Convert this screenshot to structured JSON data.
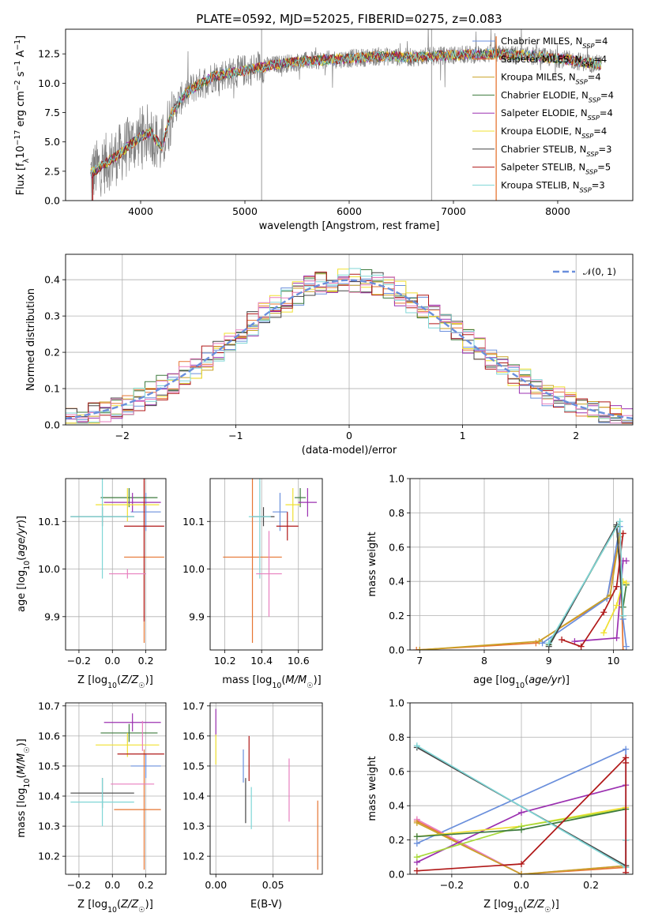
{
  "title": "PLATE=0592, MJD=52025, FIBERID=0275, z=0.083",
  "colors": {
    "Chabrier MILES": "#6a8fdc",
    "Salpeter MILES": "#e67532",
    "Kroupa MILES": "#c9a227",
    "Chabrier ELODIE": "#3d7a3d",
    "Salpeter ELODIE": "#9b30b0",
    "Kroupa ELODIE": "#f0e030",
    "Chabrier STELIB": "#454545",
    "Salpeter STELIB": "#b01818",
    "Kroupa STELIB": "#7fd6d6",
    "pink": "#e87fbf",
    "lime": "#a8d93a",
    "spectrum": "#808080",
    "normal": "#6a8fdc"
  },
  "chart_data": [
    {
      "id": "spectrum",
      "type": "line",
      "xlabel": "wavelength [Angstrom, rest frame]",
      "ylabel": "Flux [f_λ 10^-17 erg cm^-2 s^-1 A^-1]",
      "xlim": [
        3280,
        8720
      ],
      "ylim": [
        0,
        14.6
      ],
      "xticks": [
        4000,
        5000,
        6000,
        7000,
        8000
      ],
      "yticks": [
        0.0,
        2.5,
        5.0,
        7.5,
        10.0,
        12.5
      ],
      "grid": false,
      "legend_position": "top-right",
      "continuum": {
        "x": [
          3500,
          3800,
          4000,
          4100,
          4200,
          4300,
          4400,
          4500,
          4700,
          5000,
          5300,
          5600,
          6000,
          6300,
          6600,
          7000,
          7400,
          7800,
          8100,
          8400
        ],
        "y": [
          2.2,
          4.0,
          5.5,
          5.8,
          4.5,
          7.5,
          8.8,
          9.6,
          10.6,
          11.1,
          11.6,
          11.9,
          12.1,
          12.3,
          12.2,
          12.4,
          12.5,
          12.3,
          12.0,
          11.6
        ]
      },
      "series": [
        {
          "name": "Chabrier MILES",
          "nssp": "4"
        },
        {
          "name": "Salpeter MILES",
          "nssp": "4"
        },
        {
          "name": "Kroupa MILES",
          "nssp": "4"
        },
        {
          "name": "Chabrier ELODIE",
          "nssp": "4"
        },
        {
          "name": "Salpeter ELODIE",
          "nssp": "4"
        },
        {
          "name": "Kroupa ELODIE",
          "nssp": "4"
        },
        {
          "name": "Chabrier STELIB",
          "nssp": "3"
        },
        {
          "name": "Salpeter STELIB",
          "nssp": "5"
        },
        {
          "name": "Kroupa STELIB",
          "nssp": "3"
        }
      ]
    },
    {
      "id": "residuals",
      "type": "line",
      "xlabel": "(data-model)/error",
      "ylabel": "Normed distribution",
      "xlim": [
        -2.5,
        2.5
      ],
      "ylim": [
        0,
        0.47
      ],
      "xticks": [
        -2,
        -1,
        0,
        1,
        2
      ],
      "xticklabels": [
        "−2",
        "−1",
        "0",
        "1",
        "2"
      ],
      "yticks": [
        0.0,
        0.1,
        0.2,
        0.3,
        0.4
      ],
      "grid": true,
      "legend_position": "top-right",
      "legend": "𝒩(0, 1)",
      "hist_bins": 50,
      "hist_shape": "gaussian, peak ≈ 0.40"
    },
    {
      "id": "age_vs_Z",
      "type": "scatter",
      "xlabel": "Z [log10(Z/Z☉)]",
      "ylabel": "age  [log10(age/yr)]",
      "xlim": [
        -0.28,
        0.32
      ],
      "ylim": [
        9.83,
        10.19
      ],
      "xticks": [
        -0.2,
        0.0,
        0.2
      ],
      "xticklabels": [
        "−0.2",
        "0.0",
        "0.2"
      ],
      "yticks": [
        9.9,
        10.0,
        10.1
      ],
      "grid": true,
      "points": [
        {
          "c": "Chabrier MILES",
          "x": 0.2,
          "y": 10.12,
          "ex": 0.09,
          "ey": 0.04
        },
        {
          "c": "Salpeter MILES",
          "x": 0.19,
          "y": 10.025,
          "ex": 0.12,
          "ey": 0.18
        },
        {
          "c": "Chabrier ELODIE",
          "x": 0.1,
          "y": 10.15,
          "ex": 0.17,
          "ey": 0.02
        },
        {
          "c": "Salpeter ELODIE",
          "x": 0.12,
          "y": 10.14,
          "ex": 0.17,
          "ey": 0.02
        },
        {
          "c": "Kroupa ELODIE",
          "x": 0.09,
          "y": 10.135,
          "ex": 0.19,
          "ey": 0.035
        },
        {
          "c": "Chabrier STELIB",
          "x": -0.06,
          "y": 10.11,
          "ex": 0.19,
          "ey": 0.02
        },
        {
          "c": "Salpeter STELIB",
          "x": 0.19,
          "y": 10.09,
          "ex": 0.12,
          "ey": 0.2
        },
        {
          "c": "Kroupa STELIB",
          "x": -0.06,
          "y": 10.11,
          "ex": 0.19,
          "ey": 0.13
        },
        {
          "c": "pink",
          "x": 0.09,
          "y": 9.99,
          "ex": 0.11,
          "ey": 0.01
        }
      ]
    },
    {
      "id": "age_vs_mass",
      "type": "scatter",
      "xlabel": "mass [log10(M/M☉)]",
      "ylabel": "",
      "xlim": [
        10.12,
        10.73
      ],
      "ylim": [
        9.83,
        10.19
      ],
      "xticks": [
        10.2,
        10.4,
        10.6
      ],
      "yticks": [
        9.9,
        10.0,
        10.1
      ],
      "grid": true,
      "points": [
        {
          "c": "Chabrier MILES",
          "x": 10.5,
          "y": 10.12,
          "ex": 0.04,
          "ey": 0.04
        },
        {
          "c": "Salpeter MILES",
          "x": 10.35,
          "y": 10.025,
          "ex": 0.16,
          "ey": 0.18
        },
        {
          "c": "Chabrier ELODIE",
          "x": 10.61,
          "y": 10.15,
          "ex": 0.03,
          "ey": 0.02
        },
        {
          "c": "Salpeter ELODIE",
          "x": 10.65,
          "y": 10.14,
          "ex": 0.05,
          "ey": 0.03
        },
        {
          "c": "Kroupa ELODIE",
          "x": 10.57,
          "y": 10.135,
          "ex": 0.04,
          "ey": 0.035
        },
        {
          "c": "Chabrier STELIB",
          "x": 10.41,
          "y": 10.11,
          "ex": 0.06,
          "ey": 0.02
        },
        {
          "c": "Salpeter STELIB",
          "x": 10.54,
          "y": 10.09,
          "ex": 0.06,
          "ey": 0.03
        },
        {
          "c": "Kroupa STELIB",
          "x": 10.39,
          "y": 10.11,
          "ex": 0.06,
          "ey": 0.13
        },
        {
          "c": "pink",
          "x": 10.44,
          "y": 9.99,
          "ex": 0.07,
          "ey": 0.09
        }
      ]
    },
    {
      "id": "mass_weight_vs_age",
      "type": "line",
      "xlabel": "age  [log10(age/yr)]",
      "ylabel": "mass weight",
      "xlim": [
        6.85,
        10.3
      ],
      "ylim": [
        0,
        1.0
      ],
      "xticks": [
        7,
        8,
        9,
        10
      ],
      "yticks": [
        0.0,
        0.2,
        0.4,
        0.6,
        0.8,
        1.0
      ],
      "grid": true,
      "series": [
        {
          "c": "Salpeter MILES",
          "x": [
            6.95,
            8.8,
            9.9,
            10.1,
            10.15
          ],
          "y": [
            0.0,
            0.04,
            0.3,
            0.66,
            0.0
          ]
        },
        {
          "c": "Chabrier MILES",
          "x": [
            8.9,
            9.9,
            10.1,
            10.15,
            10.2
          ],
          "y": [
            0.04,
            0.3,
            0.72,
            0.18,
            0.02
          ]
        },
        {
          "c": "Kroupa MILES",
          "x": [
            7.0,
            8.85,
            9.95,
            10.1
          ],
          "y": [
            0.0,
            0.05,
            0.32,
            0.68
          ]
        },
        {
          "c": "Chabrier ELODIE",
          "x": [
            9.0,
            10.05,
            10.15,
            10.2
          ],
          "y": [
            0.03,
            0.72,
            0.25,
            0.38
          ]
        },
        {
          "c": "Salpeter ELODIE",
          "x": [
            9.4,
            10.05,
            10.15,
            10.2
          ],
          "y": [
            0.05,
            0.07,
            0.52,
            0.52
          ]
        },
        {
          "c": "Kroupa ELODIE",
          "x": [
            9.85,
            10.05,
            10.15,
            10.2
          ],
          "y": [
            0.1,
            0.26,
            0.4,
            0.39
          ]
        },
        {
          "c": "Chabrier STELIB",
          "x": [
            9.0,
            10.05,
            10.15
          ],
          "y": [
            0.02,
            0.73,
            0.2
          ]
        },
        {
          "c": "Salpeter STELIB",
          "x": [
            9.2,
            9.5,
            9.85,
            10.05,
            10.15
          ],
          "y": [
            0.06,
            0.02,
            0.22,
            0.37,
            0.68
          ]
        },
        {
          "c": "Kroupa STELIB",
          "x": [
            9.0,
            10.1,
            10.15
          ],
          "y": [
            0.04,
            0.75,
            0.2
          ]
        }
      ]
    },
    {
      "id": "mass_vs_Z",
      "type": "scatter",
      "xlabel": "Z [log10(Z/Z☉)]",
      "ylabel": "mass [log10(M/M☉)]",
      "xlim": [
        -0.28,
        0.32
      ],
      "ylim": [
        10.14,
        10.71
      ],
      "xticks": [
        -0.2,
        0.0,
        0.2
      ],
      "xticklabels": [
        "−0.2",
        "0.0",
        "0.2"
      ],
      "yticks": [
        10.2,
        10.3,
        10.4,
        10.5,
        10.6,
        10.7
      ],
      "grid": true,
      "points": [
        {
          "c": "Chabrier MILES",
          "x": 0.2,
          "y": 10.5,
          "ex": 0.09,
          "ey": 0.04
        },
        {
          "c": "Salpeter MILES",
          "x": 0.15,
          "y": 10.355,
          "ex": 0.14,
          "ey": 0.0
        },
        {
          "c": "Salpeter MILES",
          "x": 0.19,
          "y": 10.355,
          "ex": 0.0,
          "ey": 0.2
        },
        {
          "c": "Chabrier ELODIE",
          "x": 0.1,
          "y": 10.61,
          "ex": 0.17,
          "ey": 0.03
        },
        {
          "c": "Salpeter ELODIE",
          "x": 0.12,
          "y": 10.645,
          "ex": 0.17,
          "ey": 0.03
        },
        {
          "c": "Kroupa ELODIE",
          "x": 0.09,
          "y": 10.57,
          "ex": 0.19,
          "ey": 0.04
        },
        {
          "c": "Chabrier STELIB",
          "x": -0.06,
          "y": 10.41,
          "ex": 0.19,
          "ey": 0.05
        },
        {
          "c": "Salpeter STELIB",
          "x": 0.17,
          "y": 10.54,
          "ex": 0.14,
          "ey": 0.0
        },
        {
          "c": "Kroupa STELIB",
          "x": -0.06,
          "y": 10.38,
          "ex": 0.19,
          "ey": 0.08
        },
        {
          "c": "pink",
          "x": 0.12,
          "y": 10.44,
          "ex": 0.13,
          "ey": 0.0
        },
        {
          "c": "pink",
          "x": 0.18,
          "y": 10.6,
          "ex": 0.0,
          "ey": 0.05
        }
      ]
    },
    {
      "id": "mass_vs_EBV",
      "type": "scatter",
      "xlabel": "E(B-V)",
      "ylabel": "",
      "xlim": [
        -0.005,
        0.093
      ],
      "ylim": [
        10.14,
        10.71
      ],
      "xticks": [
        0.0,
        0.05
      ],
      "xticklabels": [
        "0.00",
        "0.05"
      ],
      "yticks": [
        10.2,
        10.3,
        10.4,
        10.5,
        10.6,
        10.7
      ],
      "grid": true,
      "points": [
        {
          "c": "Salpeter ELODIE",
          "x": 0.0,
          "y": 10.645,
          "ex": 0,
          "ey": 0.045
        },
        {
          "c": "Kroupa ELODIE",
          "x": 0.0,
          "y": 10.555,
          "ex": 0,
          "ey": 0.05
        },
        {
          "c": "Chabrier MILES",
          "x": 0.024,
          "y": 10.5,
          "ex": 0,
          "ey": 0.055
        },
        {
          "c": "Chabrier STELIB",
          "x": 0.026,
          "y": 10.385,
          "ex": 0,
          "ey": 0.075
        },
        {
          "c": "Salpeter STELIB",
          "x": 0.029,
          "y": 10.525,
          "ex": 0,
          "ey": 0.075
        },
        {
          "c": "Kroupa STELIB",
          "x": 0.031,
          "y": 10.36,
          "ex": 0,
          "ey": 0.07
        },
        {
          "c": "pink",
          "x": 0.064,
          "y": 10.42,
          "ex": 0,
          "ey": 0.105
        },
        {
          "c": "Salpeter MILES",
          "x": 0.089,
          "y": 10.27,
          "ex": 0,
          "ey": 0.115
        }
      ]
    },
    {
      "id": "mass_weight_vs_Z",
      "type": "line",
      "xlabel": "Z [log10(Z/Z☉)]",
      "ylabel": "mass weight",
      "xlim": [
        -0.32,
        0.32
      ],
      "ylim": [
        0,
        1.0
      ],
      "xticks": [
        -0.2,
        0.0,
        0.2
      ],
      "xticklabels": [
        "−0.2",
        "0.0",
        "0.2"
      ],
      "yticks": [
        0.0,
        0.2,
        0.4,
        0.6,
        0.8,
        1.0
      ],
      "grid": true,
      "series": [
        {
          "c": "Chabrier MILES",
          "x": [
            -0.3,
            0.3,
            0.3,
            0.3
          ],
          "y": [
            0.18,
            0.73,
            0.2,
            0.04
          ]
        },
        {
          "c": "Salpeter MILES",
          "x": [
            -0.3,
            0.0,
            0.3
          ],
          "y": [
            0.31,
            0.0,
            0.04
          ]
        },
        {
          "c": "pink",
          "x": [
            -0.3,
            0.0,
            0.3
          ],
          "y": [
            0.32,
            0.0,
            0.05
          ]
        },
        {
          "c": "Kroupa MILES",
          "x": [
            -0.3,
            0.0,
            0.3
          ],
          "y": [
            0.3,
            0.0,
            0.05
          ]
        },
        {
          "c": "Salpeter ELODIE",
          "x": [
            -0.3,
            0.0,
            0.3
          ],
          "y": [
            0.07,
            0.36,
            0.52
          ]
        },
        {
          "c": "Kroupa ELODIE",
          "x": [
            -0.3,
            0.0,
            0.3
          ],
          "y": [
            0.22,
            0.28,
            0.39
          ]
        },
        {
          "c": "lime",
          "x": [
            -0.3,
            0.0,
            0.3
          ],
          "y": [
            0.1,
            0.28,
            0.38
          ]
        },
        {
          "c": "Chabrier ELODIE",
          "x": [
            -0.3,
            0.0,
            0.3
          ],
          "y": [
            0.22,
            0.26,
            0.38
          ]
        },
        {
          "c": "Chabrier STELIB",
          "x": [
            -0.3,
            0.3,
            0.3
          ],
          "y": [
            0.74,
            0.05,
            0.2
          ]
        },
        {
          "c": "Kroupa STELIB",
          "x": [
            -0.3,
            0.3,
            0.3
          ],
          "y": [
            0.75,
            0.04,
            0.2
          ]
        },
        {
          "c": "Salpeter STELIB",
          "x": [
            -0.3,
            0.0,
            0.3,
            0.3,
            0.3
          ],
          "y": [
            0.02,
            0.06,
            0.68,
            0.65,
            0.01
          ]
        }
      ]
    }
  ]
}
